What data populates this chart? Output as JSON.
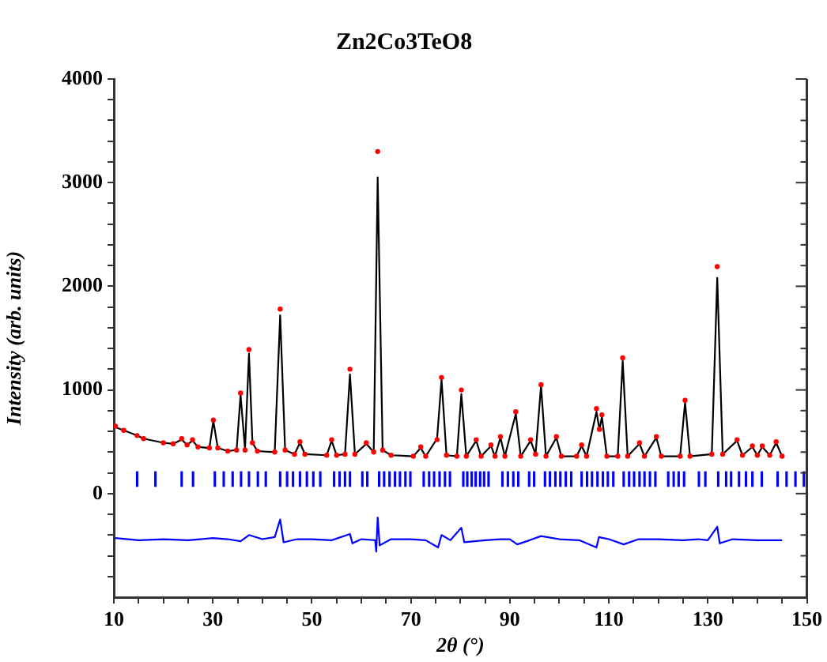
{
  "chart_data": {
    "type": "scatter",
    "title": "Zn2Co3TeO8",
    "xlabel": "2θ (°)",
    "ylabel": "Intensity (arb. units)",
    "xlim": [
      10,
      150
    ],
    "xticks": [
      10,
      {
        "value": 15,
        "label": null
      },
      {
        "value": 20,
        "label": null
      },
      {
        "value": 25,
        "label": null
      },
      30,
      {
        "value": 35,
        "label": null
      },
      {
        "value": 40,
        "label": null
      },
      {
        "value": 45,
        "label": null
      },
      50,
      {
        "value": 55,
        "label": null
      },
      {
        "value": 60,
        "label": null
      },
      {
        "value": 65,
        "label": null
      },
      70,
      {
        "value": 75,
        "label": null
      },
      {
        "value": 80,
        "label": null
      },
      {
        "value": 85,
        "label": null
      },
      90,
      {
        "value": 95,
        "label": null
      },
      {
        "value": 100,
        "label": null
      },
      {
        "value": 105,
        "label": null
      },
      110,
      {
        "value": 115,
        "label": null
      },
      {
        "value": 120,
        "label": null
      },
      {
        "value": 125,
        "label": null
      },
      130,
      {
        "value": 135,
        "label": null
      },
      {
        "value": 140,
        "label": null
      },
      {
        "value": 145,
        "label": null
      },
      150
    ],
    "ylim": [
      -1000,
      4000
    ],
    "yticks": [
      {
        "value": -800,
        "label": null
      },
      {
        "value": -600,
        "label": null
      },
      {
        "value": -400,
        "label": null
      },
      {
        "value": -200,
        "label": null
      },
      0,
      {
        "value": 200,
        "label": null
      },
      {
        "value": 400,
        "label": null
      },
      {
        "value": 600,
        "label": null
      },
      {
        "value": 800,
        "label": null
      },
      1000,
      {
        "value": 1200,
        "label": null
      },
      {
        "value": 1400,
        "label": null
      },
      {
        "value": 1600,
        "label": null
      },
      {
        "value": 1800,
        "label": null
      },
      2000,
      {
        "value": 2200,
        "label": null
      },
      {
        "value": 2400,
        "label": null
      },
      {
        "value": 2600,
        "label": null
      },
      {
        "value": 2800,
        "label": null
      },
      3000,
      {
        "value": 3200,
        "label": null
      },
      {
        "value": 3400,
        "label": null
      },
      {
        "value": 3600,
        "label": null
      },
      {
        "value": 3800,
        "label": null
      },
      4000
    ],
    "grid": false,
    "legend": false,
    "series": [
      {
        "type": "scatter",
        "marker": "circle",
        "color": "#ff0000",
        "x": [
          10.3,
          12,
          14.7,
          16,
          20,
          22,
          23.7,
          24.8,
          25.9,
          27,
          29.3,
          30.1,
          31,
          33,
          34.8,
          35.6,
          36.5,
          37.3,
          38,
          39,
          42.5,
          43.6,
          44.6,
          46.5,
          47.6,
          48.6,
          53,
          54,
          55,
          56.7,
          57.7,
          58.7,
          61,
          62.5,
          63.3,
          64.3,
          66,
          70.5,
          72,
          73,
          75.3,
          76.2,
          77.2,
          79.3,
          80.2,
          81.2,
          83.2,
          84.2,
          86.2,
          87,
          88.1,
          89,
          91.2,
          92.2,
          94.2,
          95.2,
          96.3,
          97.3,
          99.4,
          100.4,
          103.5,
          104.5,
          105.5,
          107.5,
          108.1,
          108.6,
          109.6,
          111.8,
          112.8,
          113.8,
          116.2,
          117.2,
          119.6,
          120.6,
          124.4,
          125.4,
          126.4,
          130.8,
          131.9,
          133,
          135.9,
          137,
          139,
          140,
          141,
          142.5,
          143.8,
          145
        ],
        "values": [
          650,
          610,
          560,
          530,
          490,
          480,
          530,
          470,
          520,
          450,
          440,
          710,
          440,
          410,
          420,
          970,
          420,
          1390,
          490,
          410,
          400,
          1780,
          420,
          380,
          500,
          380,
          370,
          520,
          370,
          380,
          1200,
          380,
          490,
          400,
          3300,
          420,
          370,
          360,
          450,
          360,
          520,
          1120,
          370,
          360,
          1000,
          360,
          520,
          360,
          470,
          360,
          550,
          360,
          790,
          360,
          520,
          380,
          1050,
          360,
          550,
          360,
          360,
          470,
          360,
          820,
          620,
          760,
          360,
          360,
          1310,
          360,
          490,
          360,
          550,
          360,
          360,
          900,
          360,
          380,
          2190,
          380,
          520,
          370,
          460,
          370,
          460,
          370,
          500,
          360
        ]
      },
      {
        "type": "line",
        "marker": "none",
        "color": "#000000",
        "x": [
          10.3,
          12,
          14.7,
          16,
          20,
          22,
          23.7,
          24.8,
          25.9,
          27,
          29.3,
          30.1,
          31,
          33,
          34.8,
          35.6,
          36.5,
          37.3,
          38,
          39,
          42.5,
          43.6,
          44.6,
          46.5,
          47.6,
          48.6,
          53,
          54,
          55,
          56.7,
          57.7,
          58.7,
          61,
          62.5,
          63.3,
          64.3,
          66,
          70.5,
          72,
          73,
          75.3,
          76.2,
          77.2,
          79.3,
          80.2,
          81.2,
          83.2,
          84.2,
          86.2,
          87,
          88.1,
          89,
          91.2,
          92.2,
          94.2,
          95.2,
          96.3,
          97.3,
          99.4,
          100.4,
          103.5,
          104.5,
          105.5,
          107.5,
          108.1,
          108.6,
          109.6,
          111.8,
          112.8,
          113.8,
          116.2,
          117.2,
          119.6,
          120.6,
          124.4,
          125.4,
          126.4,
          130.8,
          131.9,
          133,
          135.9,
          137,
          139,
          140,
          141,
          142.5,
          143.8,
          145
        ],
        "values": [
          640,
          610,
          560,
          530,
          490,
          480,
          520,
          470,
          510,
          450,
          440,
          700,
          440,
          410,
          420,
          950,
          430,
          1350,
          490,
          410,
          400,
          1720,
          420,
          380,
          490,
          380,
          370,
          510,
          370,
          380,
          1150,
          380,
          480,
          400,
          3050,
          420,
          370,
          360,
          440,
          360,
          530,
          1100,
          370,
          360,
          960,
          360,
          510,
          360,
          460,
          360,
          540,
          360,
          770,
          360,
          510,
          380,
          1040,
          360,
          540,
          360,
          360,
          460,
          360,
          790,
          620,
          740,
          360,
          360,
          1280,
          360,
          480,
          360,
          540,
          360,
          360,
          880,
          360,
          380,
          2080,
          380,
          510,
          370,
          450,
          370,
          450,
          370,
          490,
          360
        ]
      },
      {
        "type": "bar",
        "color": "#0000ff",
        "base": [
          70,
          70,
          70,
          70,
          70,
          70,
          70,
          70,
          70,
          70,
          70,
          70,
          70,
          70,
          70,
          70,
          70,
          70,
          70,
          70,
          70,
          70,
          70,
          70,
          70,
          70,
          70,
          70,
          70,
          70,
          70,
          70,
          70,
          70,
          70,
          70,
          70,
          70,
          70,
          70,
          70,
          70,
          70,
          70,
          70,
          70,
          70,
          70,
          70,
          70,
          70,
          70,
          70,
          70,
          70,
          70,
          70,
          70,
          70,
          70,
          70,
          70,
          70,
          70,
          70,
          70,
          70,
          70,
          70,
          70,
          70,
          70,
          70,
          70,
          70,
          70,
          70,
          70,
          70,
          70,
          70,
          70,
          70,
          70,
          70,
          70,
          70
        ],
        "x": [
          14.7,
          18.4,
          23.7,
          26.0,
          30.4,
          32.2,
          34.0,
          35.7,
          37.3,
          39.1,
          40.7,
          43.6,
          45.0,
          46.2,
          47.6,
          49.0,
          50.3,
          51.7,
          54.5,
          55.6,
          56.7,
          57.7,
          60.2,
          61.2,
          63.6,
          64.6,
          65.7,
          66.8,
          67.8,
          68.9,
          69.9,
          72.6,
          73.7,
          74.7,
          75.8,
          76.9,
          77.9,
          80.6,
          81.4,
          82.3,
          83.1,
          84.0,
          84.8,
          85.7,
          88.5,
          89.6,
          90.7,
          91.7,
          93.9,
          94.9,
          97.1,
          98.1,
          99.2,
          100.2,
          101.3,
          102.4,
          104.5,
          105.6,
          106.6,
          107.7,
          108.8,
          109.8,
          110.9,
          113.0,
          114.1,
          115.1,
          116.2,
          117.2,
          118.3,
          119.4,
          122.0,
          123.1,
          124.1,
          125.2,
          128.2,
          129.5,
          132.1,
          133.7,
          134.7,
          136.3,
          137.7,
          139.0,
          140.9,
          144.1,
          145.9,
          147.7,
          149.4
        ],
        "values": [
          140,
          140,
          140,
          140,
          140,
          140,
          140,
          140,
          140,
          140,
          140,
          140,
          140,
          140,
          140,
          140,
          140,
          140,
          140,
          140,
          140,
          140,
          140,
          140,
          140,
          140,
          140,
          140,
          140,
          140,
          140,
          140,
          140,
          140,
          140,
          140,
          140,
          140,
          140,
          140,
          140,
          140,
          140,
          140,
          140,
          140,
          140,
          140,
          140,
          140,
          140,
          140,
          140,
          140,
          140,
          140,
          140,
          140,
          140,
          140,
          140,
          140,
          140,
          140,
          140,
          140,
          140,
          140,
          140,
          140,
          140,
          140,
          140,
          140,
          140,
          140,
          140,
          140,
          140,
          140,
          140,
          140,
          140,
          140,
          140,
          140,
          140
        ]
      },
      {
        "type": "line",
        "marker": "none",
        "color": "#0000ff",
        "x": [
          10.3,
          15,
          20,
          25,
          30,
          33,
          35.6,
          37.3,
          40,
          42.5,
          43.6,
          44.3,
          47,
          50,
          54,
          57.7,
          58.2,
          60,
          62.8,
          63.0,
          63.3,
          63.7,
          66,
          70,
          73,
          75.5,
          76.2,
          78,
          80.2,
          80.8,
          85,
          88,
          90,
          91.5,
          94,
          96.3,
          100,
          104,
          107.5,
          108,
          110,
          113,
          116,
          120,
          125,
          128,
          130,
          131.9,
          132.4,
          135,
          140,
          145
        ],
        "values": [
          -430,
          -450,
          -440,
          -450,
          -430,
          -440,
          -460,
          -400,
          -440,
          -420,
          -250,
          -470,
          -440,
          -440,
          -450,
          -390,
          -480,
          -440,
          -450,
          -560,
          -230,
          -500,
          -440,
          -440,
          -450,
          -520,
          -400,
          -450,
          -330,
          -470,
          -450,
          -440,
          -440,
          -490,
          -450,
          -410,
          -440,
          -450,
          -520,
          -420,
          -440,
          -490,
          -440,
          -440,
          -450,
          -440,
          -450,
          -320,
          -480,
          -440,
          -450,
          -450
        ]
      }
    ]
  }
}
